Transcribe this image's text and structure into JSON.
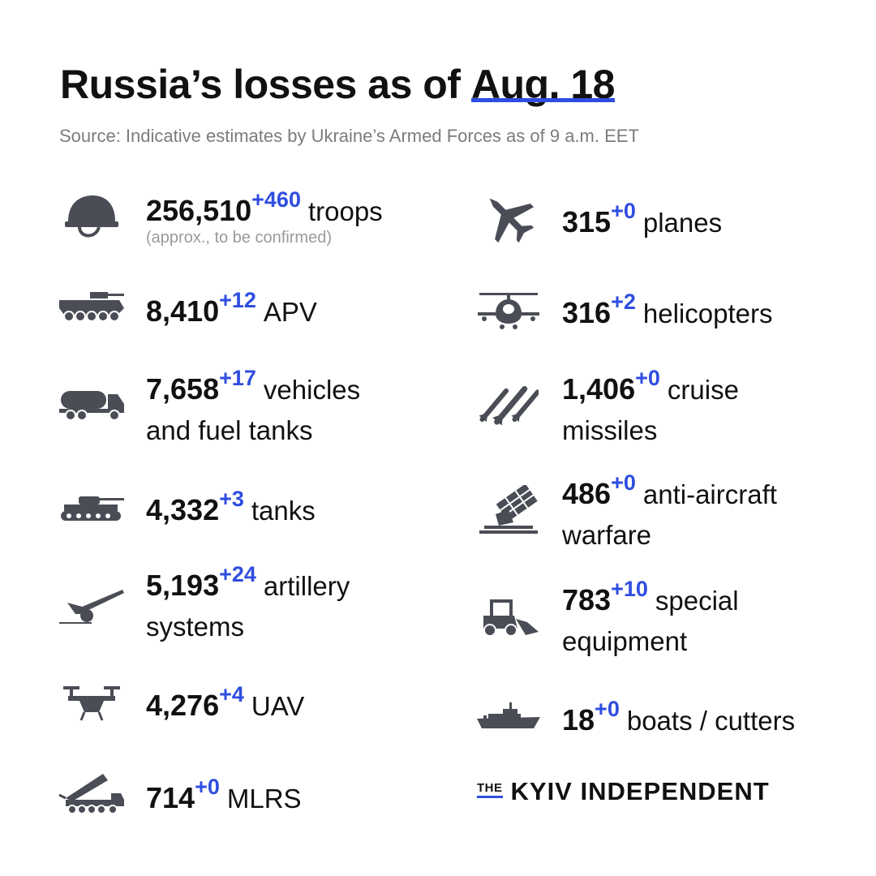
{
  "header": {
    "title_prefix": "Russia’s losses  as of",
    "title_date": "Aug. 18",
    "source": "Source: Indicative estimates by Ukraine’s Armed Forces as of 9 a.m. EET"
  },
  "left": [
    {
      "icon": "helmet-icon",
      "value": "256,510",
      "delta": "+460",
      "label": "troops",
      "note": "(approx., to be confirmed)"
    },
    {
      "icon": "apv-icon",
      "value": "8,410",
      "delta": "+12",
      "label": "APV"
    },
    {
      "icon": "fuel-truck-icon",
      "value": "7,658",
      "delta": "+17",
      "label": "vehicles",
      "label2": "and fuel tanks"
    },
    {
      "icon": "tank-icon",
      "value": "4,332",
      "delta": "+3",
      "label": "tanks"
    },
    {
      "icon": "artillery-icon",
      "value": "5,193",
      "delta": "+24",
      "label": "artillery",
      "label2": "systems"
    },
    {
      "icon": "drone-icon",
      "value": "4,276",
      "delta": "+4",
      "label": "UAV"
    },
    {
      "icon": "mlrs-icon",
      "value": "714",
      "delta": "+0",
      "label": "MLRS"
    }
  ],
  "right": [
    {
      "icon": "plane-icon",
      "value": "315",
      "delta": "+0",
      "label": "planes"
    },
    {
      "icon": "helicopter-icon",
      "value": "316",
      "delta": "+2",
      "label": "helicopters"
    },
    {
      "icon": "missile-icon",
      "value": "1,406",
      "delta": "+0",
      "label": "cruise",
      "label2": "missiles"
    },
    {
      "icon": "anti-aircraft-icon",
      "value": "486",
      "delta": "+0",
      "label": "anti-aircraft",
      "label2": "warfare"
    },
    {
      "icon": "special-equipment-icon",
      "value": "783",
      "delta": "+10",
      "label": "special",
      "label2": "equipment"
    },
    {
      "icon": "boat-icon",
      "value": "18",
      "delta": "+0",
      "label": "boats / cutters"
    }
  ],
  "logo": {
    "the": "THE",
    "name": "KYIV INDEPENDENT"
  },
  "colors": {
    "accent": "#2f4de0",
    "icon": "#4a4d55",
    "text": "#111111",
    "muted": "#7c7c7c"
  }
}
